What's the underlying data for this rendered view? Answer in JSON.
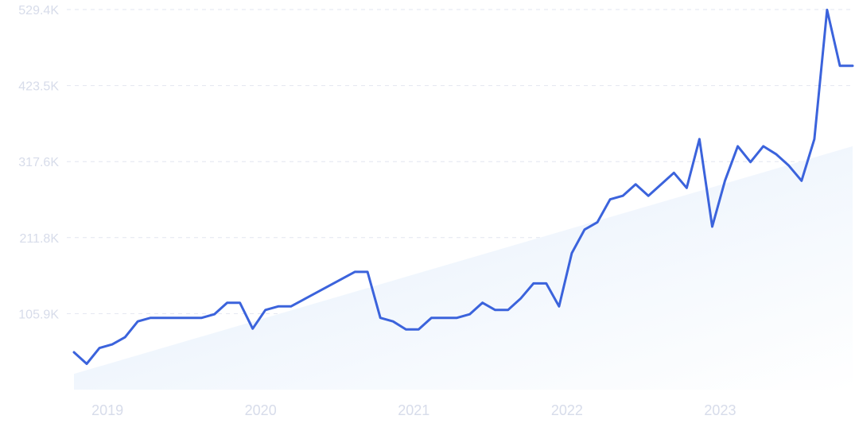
{
  "chart_data": {
    "type": "line",
    "title": "",
    "xlabel": "",
    "ylabel": "",
    "x_tick_labels": [
      "2019",
      "2020",
      "2021",
      "2022",
      "2023"
    ],
    "y_tick_labels": [
      "105.9K",
      "211.8K",
      "317.6K",
      "423.5K",
      "529.4K"
    ],
    "y_tick_values": [
      105900,
      211800,
      317600,
      423500,
      529400
    ],
    "ylim": [
      0,
      529400
    ],
    "grid": true,
    "legend": "none",
    "series": [
      {
        "x": [
          "2018-11",
          "2018-12",
          "2019-01",
          "2019-02",
          "2019-03",
          "2019-04",
          "2019-05",
          "2019-06",
          "2019-07",
          "2019-08",
          "2019-09",
          "2019-10",
          "2019-11",
          "2019-12",
          "2020-01",
          "2020-02",
          "2020-03",
          "2020-04",
          "2020-09",
          "2020-10",
          "2020-11",
          "2020-12",
          "2021-01",
          "2021-02",
          "2021-03",
          "2021-04",
          "2021-05",
          "2021-06",
          "2021-07",
          "2021-08",
          "2021-09",
          "2021-10",
          "2021-11",
          "2021-12",
          "2022-01",
          "2022-02",
          "2022-03",
          "2022-04",
          "2022-05",
          "2022-06",
          "2022-07",
          "2022-08",
          "2022-09",
          "2022-10",
          "2022-11",
          "2022-12",
          "2023-01",
          "2023-02",
          "2023-03",
          "2023-04",
          "2023-05",
          "2023-06",
          "2023-07",
          "2023-08",
          "2023-09",
          "2023-10",
          "2023-11",
          "2023-12"
        ],
        "values": [
          52000,
          36000,
          58000,
          63000,
          73000,
          95000,
          100000,
          100000,
          100000,
          100000,
          100000,
          105000,
          121000,
          121000,
          85000,
          111000,
          116000,
          116000,
          164000,
          164000,
          100000,
          95000,
          84000,
          84000,
          100000,
          100000,
          100000,
          105000,
          121000,
          111000,
          111000,
          127000,
          148000,
          148000,
          116000,
          190000,
          223000,
          233000,
          265000,
          270000,
          286000,
          270000,
          286000,
          302000,
          281000,
          349000,
          227000,
          291000,
          339000,
          317000,
          339000,
          328000,
          312000,
          291000,
          349000,
          529000,
          451000,
          451000
        ]
      }
    ],
    "trend": {
      "values": [
        22000,
        339000
      ]
    },
    "colors": {
      "line": "#3b63dc",
      "trend_fill": "#e3eefb",
      "grid": "#e2e6f0",
      "tick_text": "#d7dcea"
    }
  }
}
